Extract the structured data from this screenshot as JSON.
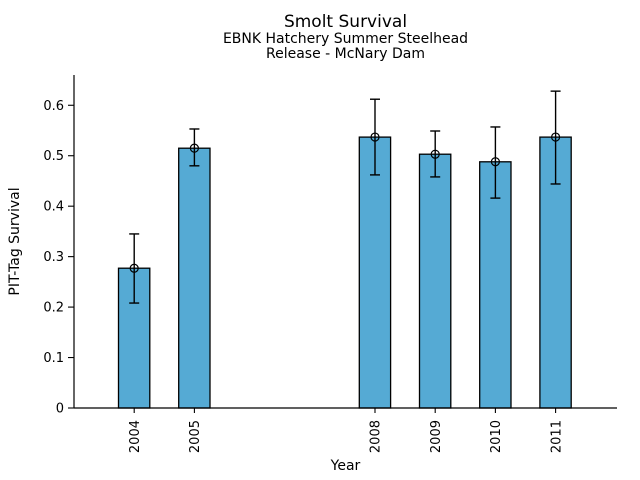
{
  "chart_data": {
    "type": "bar",
    "title": "Smolt Survival",
    "subtitle_line1": "EBNK Hatchery Summer Steelhead",
    "subtitle_line2": "Release - McNary Dam",
    "xlabel": "Year",
    "ylabel": "PIT-Tag Survival",
    "categories": [
      "2004",
      "2005",
      "2008",
      "2009",
      "2010",
      "2011"
    ],
    "values": [
      0.277,
      0.515,
      0.537,
      0.503,
      0.488,
      0.537
    ],
    "error_low": [
      0.208,
      0.48,
      0.462,
      0.458,
      0.416,
      0.444
    ],
    "error_high": [
      0.345,
      0.553,
      0.612,
      0.549,
      0.557,
      0.628
    ],
    "x_positions": [
      2004,
      2005,
      2008,
      2009,
      2010,
      2011
    ],
    "xlim": [
      2003.0,
      2012.02
    ],
    "ylim": [
      0,
      0.66
    ],
    "yticks": [
      0,
      0.1,
      0.2,
      0.3,
      0.4,
      0.5,
      0.6
    ],
    "ytick_labels": [
      "0",
      "0.1",
      "0.2",
      "0.3",
      "0.4",
      "0.5",
      "0.6"
    ],
    "bar_width_years": 0.52,
    "bar_color": "#55AAD4",
    "bar_edge_color": "#000000",
    "error_bar_color": "#000000",
    "marker": "open-circle",
    "grid": false,
    "legend": null
  }
}
